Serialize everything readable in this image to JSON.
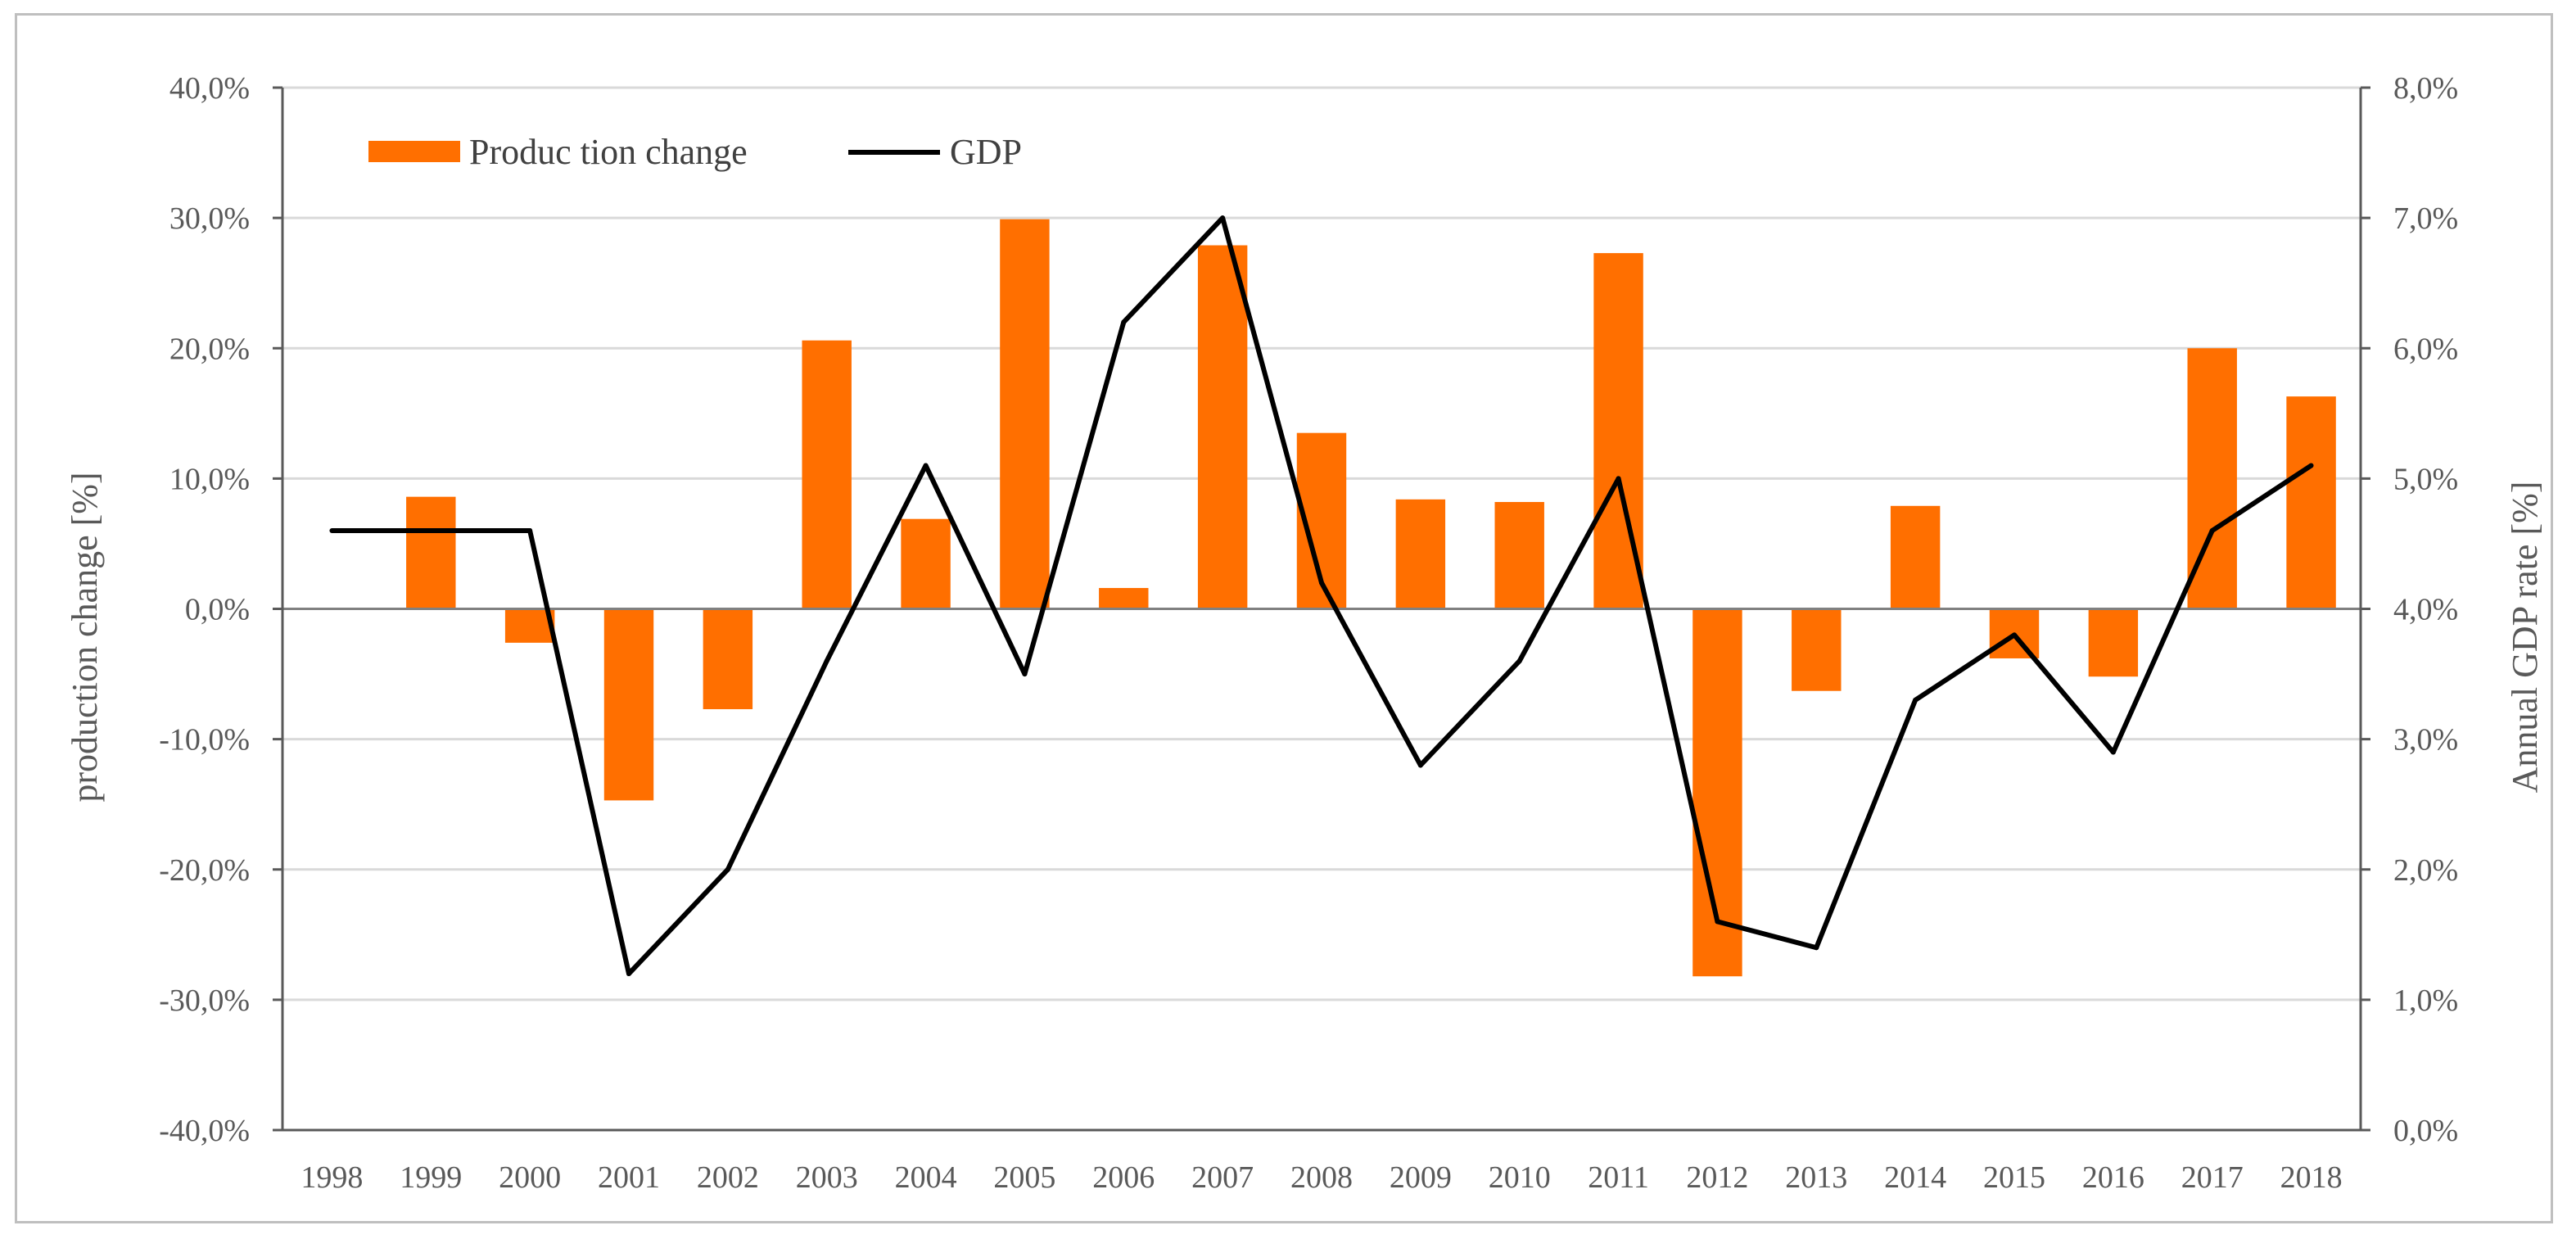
{
  "chart_data": {
    "type": "bar+line",
    "categories": [
      "1998",
      "1999",
      "2000",
      "2001",
      "2002",
      "2003",
      "2004",
      "2005",
      "2006",
      "2007",
      "2008",
      "2009",
      "2010",
      "2011",
      "2012",
      "2013",
      "2014",
      "2015",
      "2016",
      "2017",
      "2018"
    ],
    "series": [
      {
        "name": "Production change",
        "type": "bar",
        "axis": "left",
        "color": "#ff6f00",
        "values": [
          null,
          8.6,
          -2.6,
          -14.7,
          -7.7,
          20.6,
          6.9,
          29.9,
          1.6,
          27.9,
          13.5,
          8.4,
          8.2,
          27.3,
          -28.2,
          -6.3,
          7.9,
          -3.8,
          -5.2,
          20.0,
          16.3
        ]
      },
      {
        "name": "GDP",
        "type": "line",
        "axis": "right",
        "color": "#000000",
        "values": [
          4.6,
          4.6,
          4.6,
          1.2,
          2.0,
          3.6,
          5.1,
          3.5,
          6.2,
          7.0,
          4.2,
          2.8,
          3.6,
          5.0,
          1.6,
          1.4,
          3.3,
          3.8,
          2.9,
          4.6,
          5.1
        ]
      }
    ],
    "y_left": {
      "label": "production change  [%]",
      "range": [
        -40,
        40
      ],
      "ticks": [
        "-40,0%",
        "-30,0%",
        "-20,0%",
        "-10,0%",
        "0,0%",
        "10,0%",
        "20,0%",
        "30,0%",
        "40,0%"
      ]
    },
    "y_right": {
      "label": "Annual  GDP rate [%]",
      "range": [
        0,
        8
      ],
      "ticks": [
        "0,0%",
        "1,0%",
        "2,0%",
        "3,0%",
        "4,0%",
        "5,0%",
        "6,0%",
        "7,0%",
        "8,0%"
      ]
    },
    "legend": {
      "position": "top-left",
      "bar_label": "Produc tion change",
      "line_label": "GDP"
    },
    "grid": true,
    "colors": {
      "grid": "#d9d9d9",
      "axis": "#595959",
      "zero_line": "#808080"
    }
  }
}
